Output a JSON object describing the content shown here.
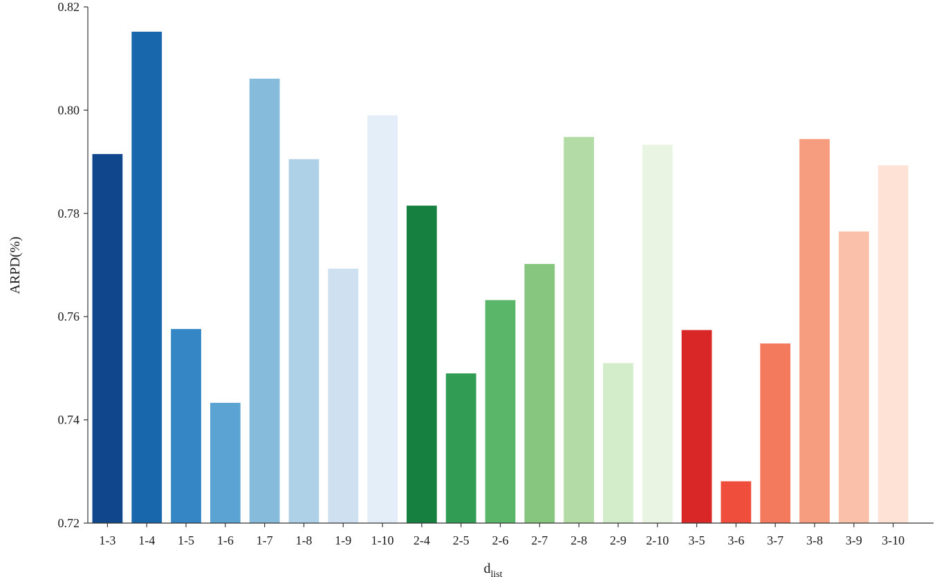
{
  "chart_data": {
    "type": "bar",
    "xlabel": "d",
    "xlabel_sub": "list",
    "ylabel": "ARPD(%)",
    "ylim": [
      0.72,
      0.82
    ],
    "yticks": [
      "0.72",
      "0.74",
      "0.76",
      "0.78",
      "0.80",
      "0.82"
    ],
    "grid": false,
    "categories": [
      "1-3",
      "1-4",
      "1-5",
      "1-6",
      "1-7",
      "1-8",
      "1-9",
      "1-10",
      "2-4",
      "2-5",
      "2-6",
      "2-7",
      "2-8",
      "2-9",
      "2-10",
      "3-5",
      "3-6",
      "3-7",
      "3-8",
      "3-9",
      "3-10"
    ],
    "values": [
      0.7915,
      0.8152,
      0.7576,
      0.7433,
      0.8061,
      0.7905,
      0.7693,
      0.799,
      0.7815,
      0.749,
      0.7632,
      0.7702,
      0.7948,
      0.751,
      0.7933,
      0.7574,
      0.7281,
      0.7548,
      0.7944,
      0.7765,
      0.7893
    ],
    "colors": [
      "#10468c",
      "#1866ac",
      "#3586c4",
      "#5ba3d2",
      "#86bbdc",
      "#afd1e7",
      "#cfe1f1",
      "#e4eef8",
      "#168040",
      "#319c53",
      "#5ab769",
      "#86c67e",
      "#b2dba6",
      "#d3ecc9",
      "#e9f5e2",
      "#d92728",
      "#ee4e3b",
      "#f47a5d",
      "#f69d80",
      "#fac0a9",
      "#fde2d5"
    ]
  }
}
